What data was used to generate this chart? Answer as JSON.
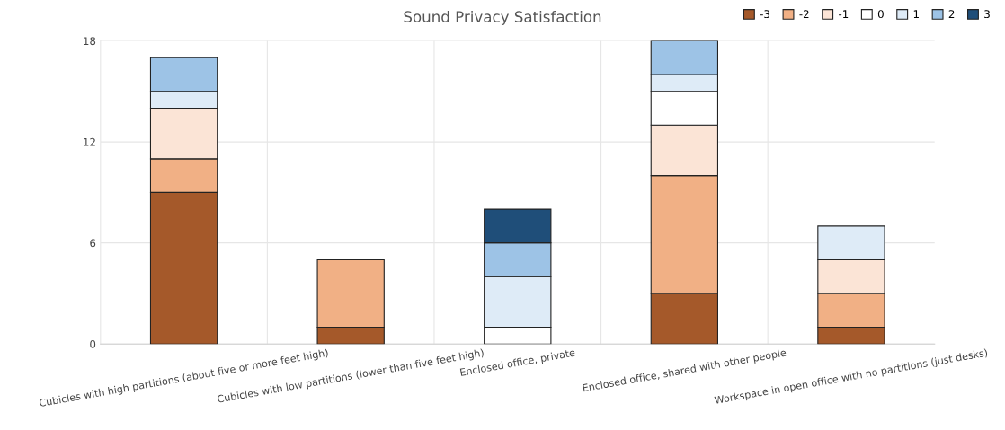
{
  "chart_data": {
    "type": "bar",
    "title": "Sound Privacy Satisfaction",
    "stacked": true,
    "categories": [
      "Cubicles with high partitions (about five or more feet high)",
      "Cubicles with low partitions (lower than five feet high)",
      "Enclosed office, private",
      "Enclosed office, shared with other people",
      "Workspace in open office with no partitions (just desks)"
    ],
    "series": [
      {
        "name": "-3",
        "color": "#a5592a",
        "values": [
          9,
          1,
          0,
          3,
          1
        ]
      },
      {
        "name": "-2",
        "color": "#f1b085",
        "values": [
          2,
          4,
          0,
          7,
          2
        ]
      },
      {
        "name": "-1",
        "color": "#fbe4d6",
        "values": [
          3,
          0,
          0,
          3,
          2
        ]
      },
      {
        "name": "0",
        "color": "#ffffff",
        "values": [
          0,
          0,
          1,
          2,
          0
        ]
      },
      {
        "name": "1",
        "color": "#deebf7",
        "values": [
          1,
          0,
          3,
          1,
          2
        ]
      },
      {
        "name": "2",
        "color": "#9dc3e6",
        "values": [
          2,
          0,
          2,
          2,
          0
        ]
      },
      {
        "name": "3",
        "color": "#1f4e79",
        "values": [
          0,
          0,
          2,
          0,
          0
        ]
      }
    ],
    "ylim": [
      0,
      18
    ],
    "yticks": [
      0,
      6,
      12,
      18
    ],
    "grid": true,
    "legend": "top right"
  }
}
